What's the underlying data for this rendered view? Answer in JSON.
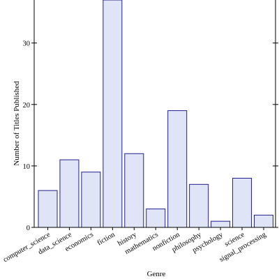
{
  "chart_data": {
    "type": "bar",
    "title": "",
    "xlabel": "Genre",
    "ylabel": "Number of Titles Published",
    "categories": [
      "computer_science",
      "data_science",
      "economics",
      "fiction",
      "history",
      "mathematics",
      "nonfiction",
      "philosophy",
      "psychology",
      "science",
      "signal_processing"
    ],
    "values": [
      6,
      11,
      9,
      37,
      12,
      3,
      19,
      7,
      1,
      8,
      2
    ],
    "ylim": [
      0,
      37
    ],
    "yticks": [
      0,
      10,
      20,
      30
    ],
    "grid": false,
    "legend": "none",
    "colors": {
      "bar_fill": "#e0e4f7",
      "bar_stroke": "#1f1f8f",
      "axis": "#000000"
    }
  }
}
